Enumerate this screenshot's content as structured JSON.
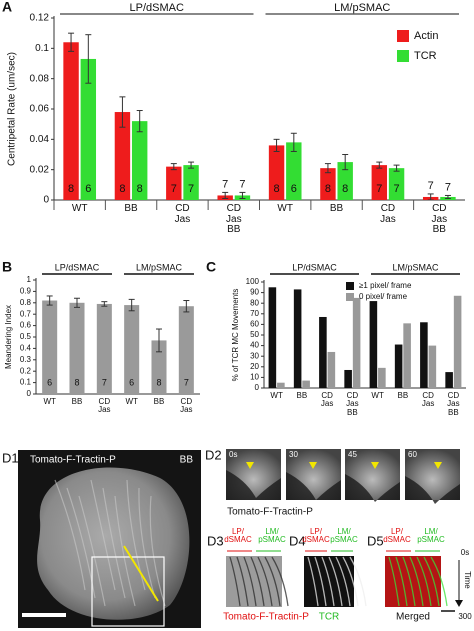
{
  "chart_data": [
    {
      "type": "bar",
      "label": "A",
      "y_label": "Centripetal Rate (um/sec)",
      "groups": [
        "LP/dSMAC",
        "LM/pSMAC"
      ],
      "categories": [
        "WT",
        "BB",
        "CD Jas",
        "CD Jas BB",
        "WT",
        "BB",
        "CD Jas",
        "CD Jas BB"
      ],
      "series": [
        {
          "name": "Actin",
          "color": "#ee1c1c",
          "values": [
            0.104,
            0.058,
            0.022,
            0.003,
            0.036,
            0.021,
            0.023,
            0.002
          ],
          "errors": [
            0.006,
            0.01,
            0.002,
            0.002,
            0.004,
            0.003,
            0.002,
            0.002
          ],
          "counts": [
            8,
            8,
            7,
            7,
            8,
            8,
            7,
            7
          ]
        },
        {
          "name": "TCR",
          "color": "#33dd33",
          "values": [
            0.093,
            0.052,
            0.023,
            0.003,
            0.038,
            0.025,
            0.021,
            0.002
          ],
          "errors": [
            0.016,
            0.007,
            0.002,
            0.002,
            0.006,
            0.005,
            0.002,
            0.001
          ],
          "counts": [
            6,
            8,
            7,
            7,
            6,
            8,
            7,
            7
          ]
        }
      ],
      "ylim": [
        0,
        0.12
      ],
      "yticks": [
        0,
        0.02,
        0.04,
        0.06,
        0.08,
        0.1,
        0.12
      ],
      "legend": "top-right"
    },
    {
      "type": "bar",
      "label": "B",
      "y_label": "Meandering Index",
      "groups": [
        "LP/dSMAC",
        "LM/pSMAC"
      ],
      "categories": [
        "WT",
        "BB",
        "CD Jas",
        "WT",
        "BB",
        "CD Jas"
      ],
      "series": [
        {
          "color": "#9a9a9a",
          "values": [
            0.82,
            0.8,
            0.79,
            0.78,
            0.47,
            0.77
          ],
          "errors": [
            0.04,
            0.04,
            0.02,
            0.05,
            0.1,
            0.05
          ],
          "counts": [
            6,
            8,
            7,
            6,
            8,
            7
          ]
        }
      ],
      "ylim": [
        0,
        1
      ],
      "yticks": [
        0,
        0.1,
        0.2,
        0.3,
        0.4,
        0.5,
        0.6,
        0.7,
        0.8,
        0.9,
        1
      ]
    },
    {
      "type": "bar",
      "label": "C",
      "y_label": "% of TCR MC Movements",
      "groups": [
        "LP/dSMAC",
        "LM/pSMAC"
      ],
      "categories": [
        "WT",
        "BB",
        "CD Jas",
        "CD Jas BB",
        "WT",
        "BB",
        "CD Jas",
        "CD Jas BB"
      ],
      "series": [
        {
          "name": "≥1 pixel/ frame",
          "color": "#111111",
          "values": [
            95,
            93,
            67,
            17,
            82,
            41,
            62,
            15
          ]
        },
        {
          "name": "0 pixel/ frame",
          "color": "#999999",
          "values": [
            5,
            7,
            34,
            85,
            19,
            61,
            40,
            87
          ]
        }
      ],
      "ylim": [
        0,
        100
      ],
      "yticks": [
        0,
        10,
        20,
        30,
        40,
        50,
        60,
        70,
        80,
        90,
        100
      ],
      "legend": "top-right"
    }
  ],
  "panel_d": {
    "d1": {
      "label": "D1",
      "channel": "Tomato-F-Tractin-P",
      "condition": "BB"
    },
    "d2": {
      "label": "D2",
      "frames": [
        "0s",
        "30",
        "45",
        "60"
      ],
      "caption": "Tomato-F-Tractin-P"
    },
    "kymographs": {
      "regions": [
        "LP/ dSMAC",
        "LM/ pSMAC"
      ],
      "panels": [
        {
          "label": "D3",
          "caption": "Tomato-F-Tractin-P"
        },
        {
          "label": "D4",
          "caption": "TCR"
        },
        {
          "label": "D5",
          "caption": "Merged"
        }
      ],
      "time_start": "0s",
      "time_axis": "Time",
      "time_end": "300"
    }
  }
}
